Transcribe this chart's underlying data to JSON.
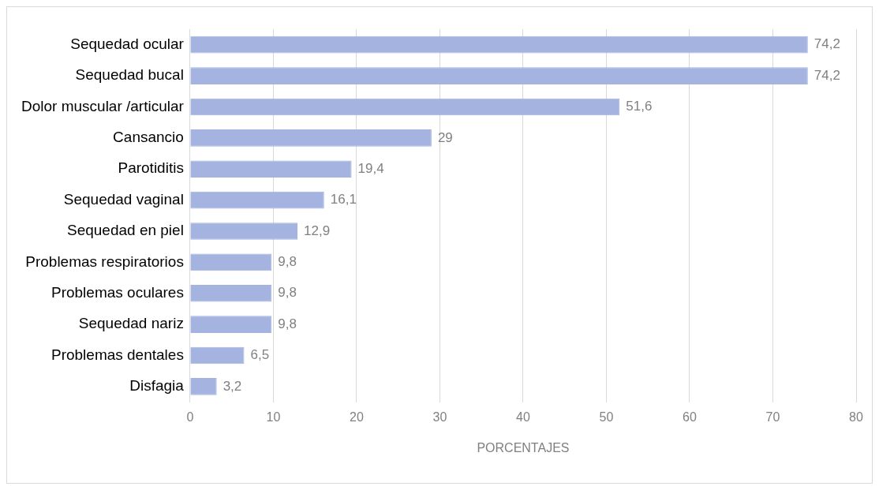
{
  "chart_data": {
    "type": "bar",
    "orientation": "horizontal",
    "xlabel": "PORCENTAJES",
    "categories": [
      "Sequedad ocular",
      "Sequedad bucal",
      "Dolor muscular /articular",
      "Cansancio",
      "Parotiditis",
      "Sequedad vaginal",
      "Sequedad en piel",
      "Problemas respiratorios",
      "Problemas oculares",
      "Sequedad nariz",
      "Problemas dentales",
      "Disfagia"
    ],
    "values": [
      74.2,
      74.2,
      51.6,
      29,
      19.4,
      16.1,
      12.9,
      9.8,
      9.8,
      9.8,
      6.5,
      3.2
    ],
    "value_labels": [
      "74,2",
      "74,2",
      "51,6",
      "29",
      "19,4",
      "16,1",
      "12,9",
      "9,8",
      "9,8",
      "9,8",
      "6,5",
      "3,2"
    ],
    "color": "#a4b3e0",
    "xlim": [
      0,
      80
    ],
    "xticks": [
      0,
      10,
      20,
      30,
      40,
      50,
      60,
      70,
      80
    ],
    "grid": "x",
    "legend": false
  }
}
